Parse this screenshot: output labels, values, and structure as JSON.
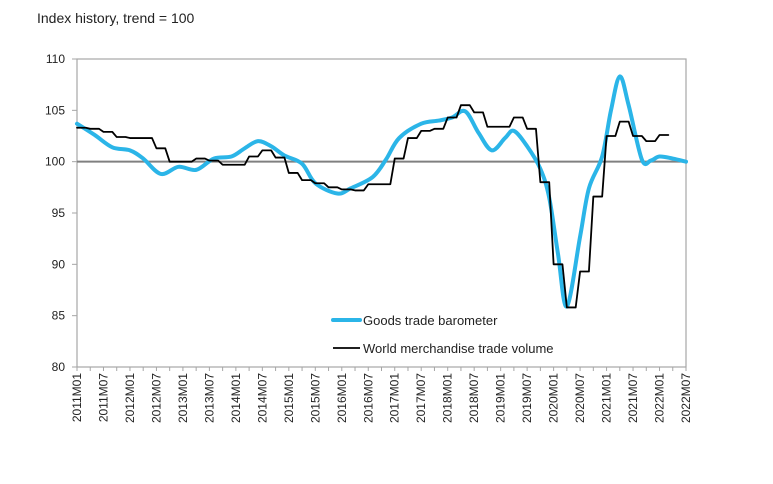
{
  "chart_data": {
    "type": "line",
    "title": "Index history, trend = 100",
    "xlabel": "",
    "ylabel": "",
    "ylim": [
      80,
      110
    ],
    "yticks": [
      80,
      85,
      90,
      95,
      100,
      105,
      110
    ],
    "xlim": [
      "2011M01",
      "2022M07"
    ],
    "xticks": [
      "2011M01",
      "2011M07",
      "2012M01",
      "2012M07",
      "2013M01",
      "2013M07",
      "2014M01",
      "2014M07",
      "2015M01",
      "2015M07",
      "2016M01",
      "2016M07",
      "2017M01",
      "2017M07",
      "2018M01",
      "2018M07",
      "2019M01",
      "2019M07",
      "2020M01",
      "2020M07",
      "2021M01",
      "2021M07",
      "2022M01",
      "2022M07"
    ],
    "reference_line": 100,
    "grid": false,
    "legend_position": "bottom-right",
    "series": [
      {
        "name": "Goods trade barometer",
        "color": "#2bb5e8",
        "style": "smooth",
        "x": [
          "2011M01",
          "2011M05",
          "2011M09",
          "2012M01",
          "2012M04",
          "2012M08",
          "2012M12",
          "2013M04",
          "2013M08",
          "2013M12",
          "2014M03",
          "2014M06",
          "2014M09",
          "2014M12",
          "2015M04",
          "2015M07",
          "2015M12",
          "2016M03",
          "2016M08",
          "2016M11",
          "2017M02",
          "2017M07",
          "2017M11",
          "2018M02",
          "2018M05",
          "2018M08",
          "2018M11",
          "2019M02",
          "2019M04",
          "2019M07",
          "2019M10",
          "2019M12",
          "2020M02",
          "2020M04",
          "2020M07",
          "2020M09",
          "2020M12",
          "2021M02",
          "2021M04",
          "2021M06",
          "2021M09",
          "2021M11",
          "2022M01",
          "2022M04",
          "2022M07"
        ],
        "values": [
          103.7,
          102.6,
          101.4,
          101.1,
          100.3,
          98.8,
          99.5,
          99.2,
          100.3,
          100.5,
          101.3,
          102.0,
          101.5,
          100.6,
          99.8,
          97.9,
          96.9,
          97.4,
          98.5,
          100.2,
          102.3,
          103.7,
          104.0,
          104.3,
          104.9,
          102.8,
          101.1,
          102.3,
          103.0,
          101.5,
          99.3,
          96.5,
          91.0,
          85.9,
          92.7,
          97.4,
          100.5,
          105.0,
          108.3,
          105.5,
          100.2,
          100.1,
          100.5,
          100.3,
          100.0
        ]
      },
      {
        "name": "World merchandise trade volume",
        "color": "#000000",
        "style": "step-quarterly",
        "x": [
          "2011M01",
          "2011M04",
          "2011M07",
          "2011M10",
          "2012M01",
          "2012M04",
          "2012M07",
          "2012M10",
          "2013M01",
          "2013M04",
          "2013M07",
          "2013M10",
          "2014M01",
          "2014M04",
          "2014M07",
          "2014M10",
          "2015M01",
          "2015M04",
          "2015M07",
          "2015M10",
          "2016M01",
          "2016M04",
          "2016M07",
          "2016M10",
          "2017M01",
          "2017M04",
          "2017M07",
          "2017M10",
          "2018M01",
          "2018M04",
          "2018M07",
          "2018M10",
          "2019M01",
          "2019M04",
          "2019M07",
          "2019M10",
          "2020M01",
          "2020M04",
          "2020M07",
          "2020M10",
          "2021M01",
          "2021M04",
          "2021M07",
          "2021M10",
          "2022M01"
        ],
        "values": [
          103.3,
          103.2,
          102.9,
          102.4,
          102.3,
          102.3,
          101.3,
          100.0,
          100.0,
          100.3,
          100.1,
          99.7,
          99.7,
          100.5,
          101.1,
          100.4,
          98.9,
          98.2,
          97.9,
          97.5,
          97.3,
          97.2,
          97.8,
          97.8,
          100.3,
          102.3,
          103.0,
          103.2,
          104.3,
          105.5,
          104.8,
          103.4,
          103.4,
          104.3,
          103.2,
          98.0,
          90.0,
          85.8,
          89.3,
          96.6,
          102.5,
          103.9,
          102.5,
          102.0,
          102.6
        ]
      }
    ]
  }
}
